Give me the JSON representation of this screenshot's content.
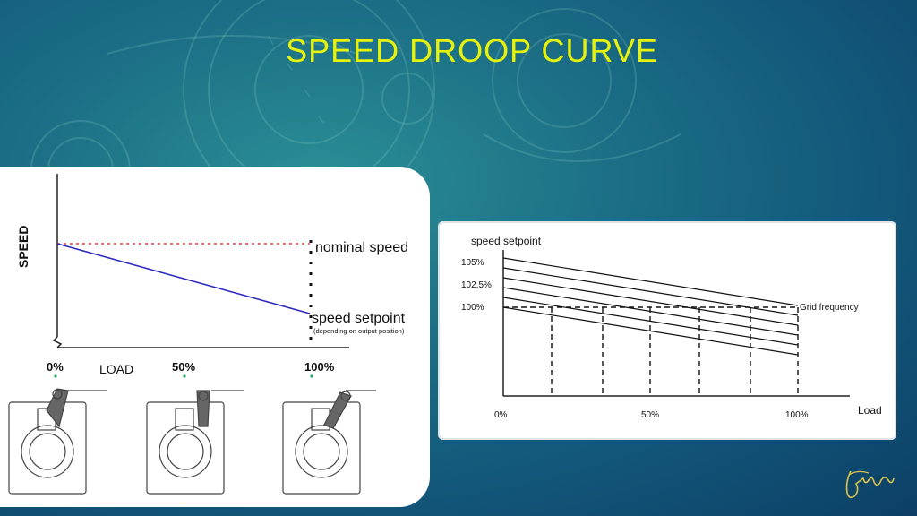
{
  "slide": {
    "title": "SPEED DROOP CURVE"
  },
  "left_diagram": {
    "y_axis_label": "SPEED",
    "x_axis_label": "LOAD",
    "ticks": [
      "0%",
      "50%",
      "100%"
    ],
    "nominal_speed_label": "nominal speed",
    "setpoint_label": "speed setpoint",
    "setpoint_note": "(depending on output position)",
    "colors": {
      "droop_line": "#2b2bbf",
      "nominal_line": "#e23a3a",
      "tick_marker": "#2aa06a"
    }
  },
  "right_diagram": {
    "y_axis_label": "speed setpoint",
    "y_ticks": [
      "105%",
      "102,5%",
      "100%"
    ],
    "x_ticks": [
      "0%",
      "50%",
      "100%"
    ],
    "x_axis_label": "Load",
    "grid_frequency_label": "Grid frequency",
    "droop_line_count": 6
  },
  "signature": {
    "icon": "signature-icon"
  }
}
